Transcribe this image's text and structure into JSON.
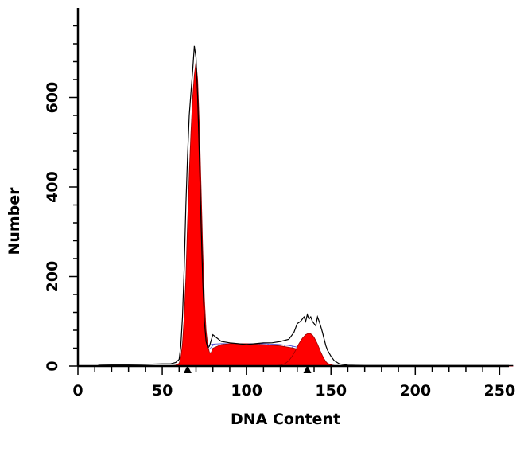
{
  "chart_data": {
    "type": "area",
    "xlabel": "DNA Content",
    "ylabel": "Number",
    "xlim": [
      0,
      260
    ],
    "ylim": [
      0,
      800
    ],
    "x_ticks": [
      0,
      50,
      100,
      150,
      200,
      250
    ],
    "y_ticks": [
      0,
      200,
      400,
      600
    ],
    "grid": false,
    "colors": {
      "histogram_line": "#000000",
      "g1_g2_fill": "#ff0000",
      "s_phase_hatch": "#3333cc"
    },
    "series": [
      {
        "x": [
          12,
          20,
          30,
          40,
          50,
          55,
          58,
          60,
          61,
          62,
          63,
          64,
          65,
          66,
          67,
          68,
          69,
          70,
          71,
          72,
          73,
          74,
          75,
          76,
          77,
          78,
          80,
          85,
          90,
          95,
          100,
          105,
          110,
          115,
          120,
          125,
          128,
          130,
          132,
          134,
          135,
          136,
          137,
          138,
          139,
          140,
          141,
          142,
          143,
          144,
          145,
          146,
          147,
          148,
          150,
          152,
          155,
          158,
          160,
          170,
          200,
          250,
          258
        ],
        "values": [
          4,
          3,
          3,
          4,
          5,
          5,
          8,
          15,
          45,
          110,
          220,
          360,
          470,
          560,
          610,
          660,
          715,
          690,
          600,
          470,
          320,
          190,
          100,
          55,
          40,
          45,
          70,
          55,
          52,
          50,
          48,
          50,
          52,
          52,
          55,
          60,
          75,
          95,
          100,
          110,
          100,
          115,
          105,
          110,
          100,
          95,
          90,
          110,
          100,
          88,
          75,
          60,
          45,
          35,
          22,
          12,
          5,
          3,
          2,
          1,
          1,
          1,
          1
        ]
      },
      {
        "x": [
          12,
          40,
          55,
          58,
          60,
          61,
          62,
          63,
          64,
          65,
          66,
          67,
          68,
          69,
          70,
          71,
          72,
          73,
          74,
          75,
          76,
          77,
          78,
          79,
          80,
          85,
          90,
          100,
          110,
          120,
          125,
          128,
          130,
          132,
          134,
          135,
          136,
          137,
          138,
          139,
          140,
          141,
          142,
          143,
          144,
          145,
          146,
          147,
          148,
          150,
          152,
          155,
          158,
          160,
          200,
          258
        ],
        "values": [
          0,
          0,
          0,
          2,
          6,
          20,
          50,
          110,
          200,
          320,
          430,
          520,
          600,
          650,
          680,
          640,
          540,
          400,
          260,
          150,
          80,
          45,
          30,
          30,
          40,
          48,
          50,
          50,
          48,
          45,
          42,
          40,
          38,
          36,
          33,
          31,
          30,
          28,
          27,
          25,
          23,
          20,
          18,
          15,
          12,
          10,
          8,
          5,
          3,
          1,
          0,
          0,
          0,
          0,
          0,
          0
        ]
      },
      {
        "x": [
          12,
          60,
          64,
          66,
          68,
          70,
          72,
          74,
          76,
          78,
          80,
          85,
          90,
          100,
          110,
          115,
          120,
          125,
          128,
          130,
          132,
          134,
          136,
          138,
          140,
          142,
          144,
          146,
          148,
          150,
          152,
          155,
          158,
          160,
          200,
          258
        ],
        "values": [
          0,
          0,
          0,
          5,
          12,
          22,
          30,
          38,
          43,
          47,
          49,
          50,
          50,
          50,
          50,
          49,
          48,
          46,
          44,
          42,
          40,
          37,
          33,
          28,
          22,
          16,
          11,
          7,
          4,
          2,
          1,
          0,
          0,
          0,
          0,
          0
        ]
      },
      {
        "x": [
          12,
          110,
          115,
          120,
          123,
          125,
          127,
          129,
          131,
          133,
          135,
          136,
          137,
          138,
          139,
          140,
          141,
          142,
          143,
          144,
          145,
          146,
          147,
          148,
          150,
          152,
          155,
          158,
          160,
          200,
          258
        ],
        "values": [
          0,
          0,
          0,
          2,
          6,
          12,
          22,
          35,
          50,
          62,
          70,
          72,
          73,
          72,
          69,
          64,
          57,
          49,
          40,
          31,
          23,
          16,
          10,
          6,
          3,
          1,
          0,
          0,
          0,
          0,
          0
        ]
      }
    ],
    "markers": [
      {
        "x": 65
      },
      {
        "x": 136
      }
    ]
  }
}
